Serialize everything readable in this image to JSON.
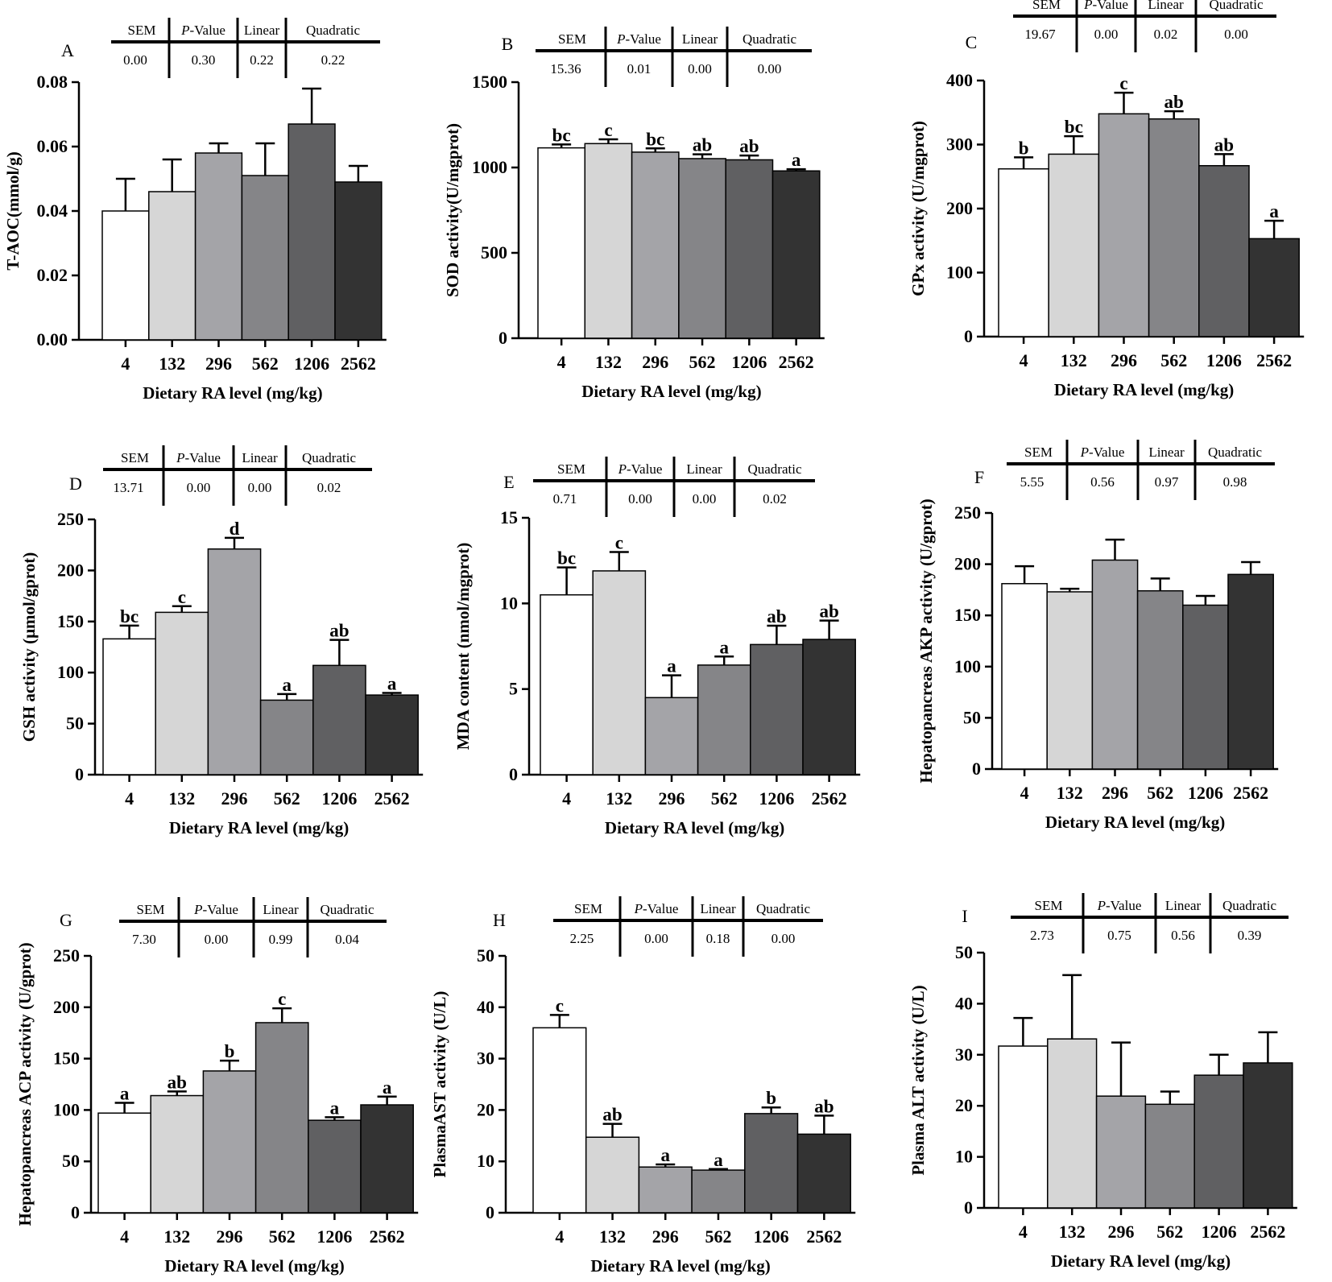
{
  "figure": {
    "stat_headers": [
      "SEM",
      "P-Value",
      "Linear",
      "Quadratic"
    ],
    "bar_colors": [
      "#ffffff",
      "#d6d6d6",
      "#a4a4a8",
      "#858588",
      "#606062",
      "#333333"
    ]
  },
  "chart_data": [
    {
      "type": "bar",
      "panel": "A",
      "categories": [
        "4",
        "132",
        "296",
        "562",
        "1206",
        "2562"
      ],
      "values": [
        0.04,
        0.046,
        0.058,
        0.051,
        0.067,
        0.049
      ],
      "errors": [
        0.01,
        0.01,
        0.003,
        0.01,
        0.011,
        0.005
      ],
      "sig_labels": [
        "",
        "",
        "",
        "",
        "",
        ""
      ],
      "ylabel": "T-AOC(mmol/g)",
      "xlabel": "Dietary RA level (mg/kg)",
      "ylim": [
        0,
        0.08
      ],
      "yticks": [
        "0.00",
        "0.02",
        "0.04",
        "0.06",
        "0.08"
      ],
      "stats": [
        "0.00",
        "0.30",
        "0.22",
        "0.22"
      ]
    },
    {
      "type": "bar",
      "panel": "B",
      "categories": [
        "4",
        "132",
        "296",
        "562",
        "1206",
        "2562"
      ],
      "values": [
        1115,
        1140,
        1090,
        1052,
        1045,
        980
      ],
      "errors": [
        20,
        25,
        22,
        25,
        25,
        10
      ],
      "sig_labels": [
        "bc",
        "c",
        "bc",
        "ab",
        "ab",
        "a"
      ],
      "ylabel": "SOD activity(U/mgprot)",
      "xlabel": "Dietary RA level (mg/kg)",
      "ylim": [
        0,
        1500
      ],
      "yticks": [
        "0",
        "500",
        "1000",
        "1500"
      ],
      "stats": [
        "15.36",
        "0.01",
        "0.00",
        "0.00"
      ]
    },
    {
      "type": "bar",
      "panel": "C",
      "categories": [
        "4",
        "132",
        "296",
        "562",
        "1206",
        "2562"
      ],
      "values": [
        262,
        285,
        348,
        340,
        267,
        153
      ],
      "errors": [
        18,
        28,
        33,
        12,
        18,
        28
      ],
      "sig_labels": [
        "b",
        "bc",
        "c",
        "ab",
        "ab",
        "a"
      ],
      "ylabel": "GPx activity (U/mgprot)",
      "xlabel": "Dietary RA level (mg/kg)",
      "ylim": [
        0,
        400
      ],
      "yticks": [
        "0",
        "100",
        "200",
        "300",
        "400"
      ],
      "stats": [
        "19.67",
        "0.00",
        "0.02",
        "0.00"
      ]
    },
    {
      "type": "bar",
      "panel": "D",
      "categories": [
        "4",
        "132",
        "296",
        "562",
        "1206",
        "2562"
      ],
      "values": [
        133,
        159,
        221,
        73,
        107,
        78
      ],
      "errors": [
        13,
        6,
        11,
        6,
        25,
        2
      ],
      "sig_labels": [
        "bc",
        "c",
        "d",
        "a",
        "ab",
        "a"
      ],
      "ylabel": "GSH activity (μmol/gprot)",
      "xlabel": "Dietary RA level (mg/kg)",
      "ylim": [
        0,
        250
      ],
      "yticks": [
        "0",
        "50",
        "100",
        "150",
        "200",
        "250"
      ],
      "stats": [
        "13.71",
        "0.00",
        "0.00",
        "0.02"
      ]
    },
    {
      "type": "bar",
      "panel": "E",
      "categories": [
        "4",
        "132",
        "296",
        "562",
        "1206",
        "2562"
      ],
      "values": [
        10.5,
        11.9,
        4.5,
        6.4,
        7.6,
        7.9
      ],
      "errors": [
        1.6,
        1.1,
        1.3,
        0.5,
        1.1,
        1.1
      ],
      "sig_labels": [
        "bc",
        "c",
        "a",
        "a",
        "ab",
        "ab"
      ],
      "ylabel": "MDA content (nmol/mgprot)",
      "xlabel": "Dietary RA level (mg/kg)",
      "ylim": [
        0,
        15
      ],
      "yticks": [
        "0",
        "5",
        "10",
        "15"
      ],
      "stats": [
        "0.71",
        "0.00",
        "0.00",
        "0.02"
      ]
    },
    {
      "type": "bar",
      "panel": "F",
      "categories": [
        "4",
        "132",
        "296",
        "562",
        "1206",
        "2562"
      ],
      "values": [
        181,
        173,
        204,
        174,
        160,
        190
      ],
      "errors": [
        17,
        3,
        20,
        12,
        9,
        12
      ],
      "sig_labels": [
        "",
        "",
        "",
        "",
        "",
        ""
      ],
      "ylabel": "Hepatopancreas AKP activity (U/gprot)",
      "xlabel": "Dietary RA level (mg/kg)",
      "ylim": [
        0,
        250
      ],
      "yticks": [
        "0",
        "50",
        "100",
        "150",
        "200",
        "250"
      ],
      "stats": [
        "5.55",
        "0.56",
        "0.97",
        "0.98"
      ]
    },
    {
      "type": "bar",
      "panel": "G",
      "categories": [
        "4",
        "132",
        "296",
        "562",
        "1206",
        "2562"
      ],
      "values": [
        97,
        114,
        138,
        185,
        90,
        105
      ],
      "errors": [
        10,
        4,
        10,
        14,
        3,
        8
      ],
      "sig_labels": [
        "a",
        "ab",
        "b",
        "c",
        "a",
        "a"
      ],
      "ylabel": "Hepatopancreas ACP activity (U/gprot)",
      "xlabel": "Dietary RA level (mg/kg)",
      "ylim": [
        0,
        250
      ],
      "yticks": [
        "0",
        "50",
        "100",
        "150",
        "200",
        "250"
      ],
      "stats": [
        "7.30",
        "0.00",
        "0.99",
        "0.04"
      ]
    },
    {
      "type": "bar",
      "panel": "H",
      "categories": [
        "4",
        "132",
        "296",
        "562",
        "1206",
        "2562"
      ],
      "values": [
        36,
        14.7,
        8.9,
        8.3,
        19.3,
        15.3
      ],
      "errors": [
        2.5,
        2.6,
        0.5,
        0.2,
        1.2,
        3.6
      ],
      "sig_labels": [
        "c",
        "ab",
        "a",
        "a",
        "b",
        "ab"
      ],
      "ylabel": "PlasmaAST activity (U/L)",
      "xlabel": "Dietary RA level (mg/kg)",
      "ylim": [
        0,
        50
      ],
      "yticks": [
        "0",
        "10",
        "20",
        "30",
        "40",
        "50"
      ],
      "stats": [
        "2.25",
        "0.00",
        "0.18",
        "0.00"
      ]
    },
    {
      "type": "bar",
      "panel": "I",
      "categories": [
        "4",
        "132",
        "296",
        "562",
        "1206",
        "2562"
      ],
      "values": [
        31.7,
        33.1,
        21.9,
        20.3,
        26.0,
        28.4
      ],
      "errors": [
        5.5,
        12.5,
        10.5,
        2.5,
        4.0,
        6.0
      ],
      "sig_labels": [
        "",
        "",
        "",
        "",
        "",
        ""
      ],
      "ylabel": "Plasma ALT activity (U/L)",
      "xlabel": "Dietary RA level (mg/kg)",
      "ylim": [
        0,
        50
      ],
      "yticks": [
        "0",
        "10",
        "20",
        "30",
        "40",
        "50"
      ],
      "stats": [
        "2.73",
        "0.75",
        "0.56",
        "0.39"
      ]
    }
  ]
}
